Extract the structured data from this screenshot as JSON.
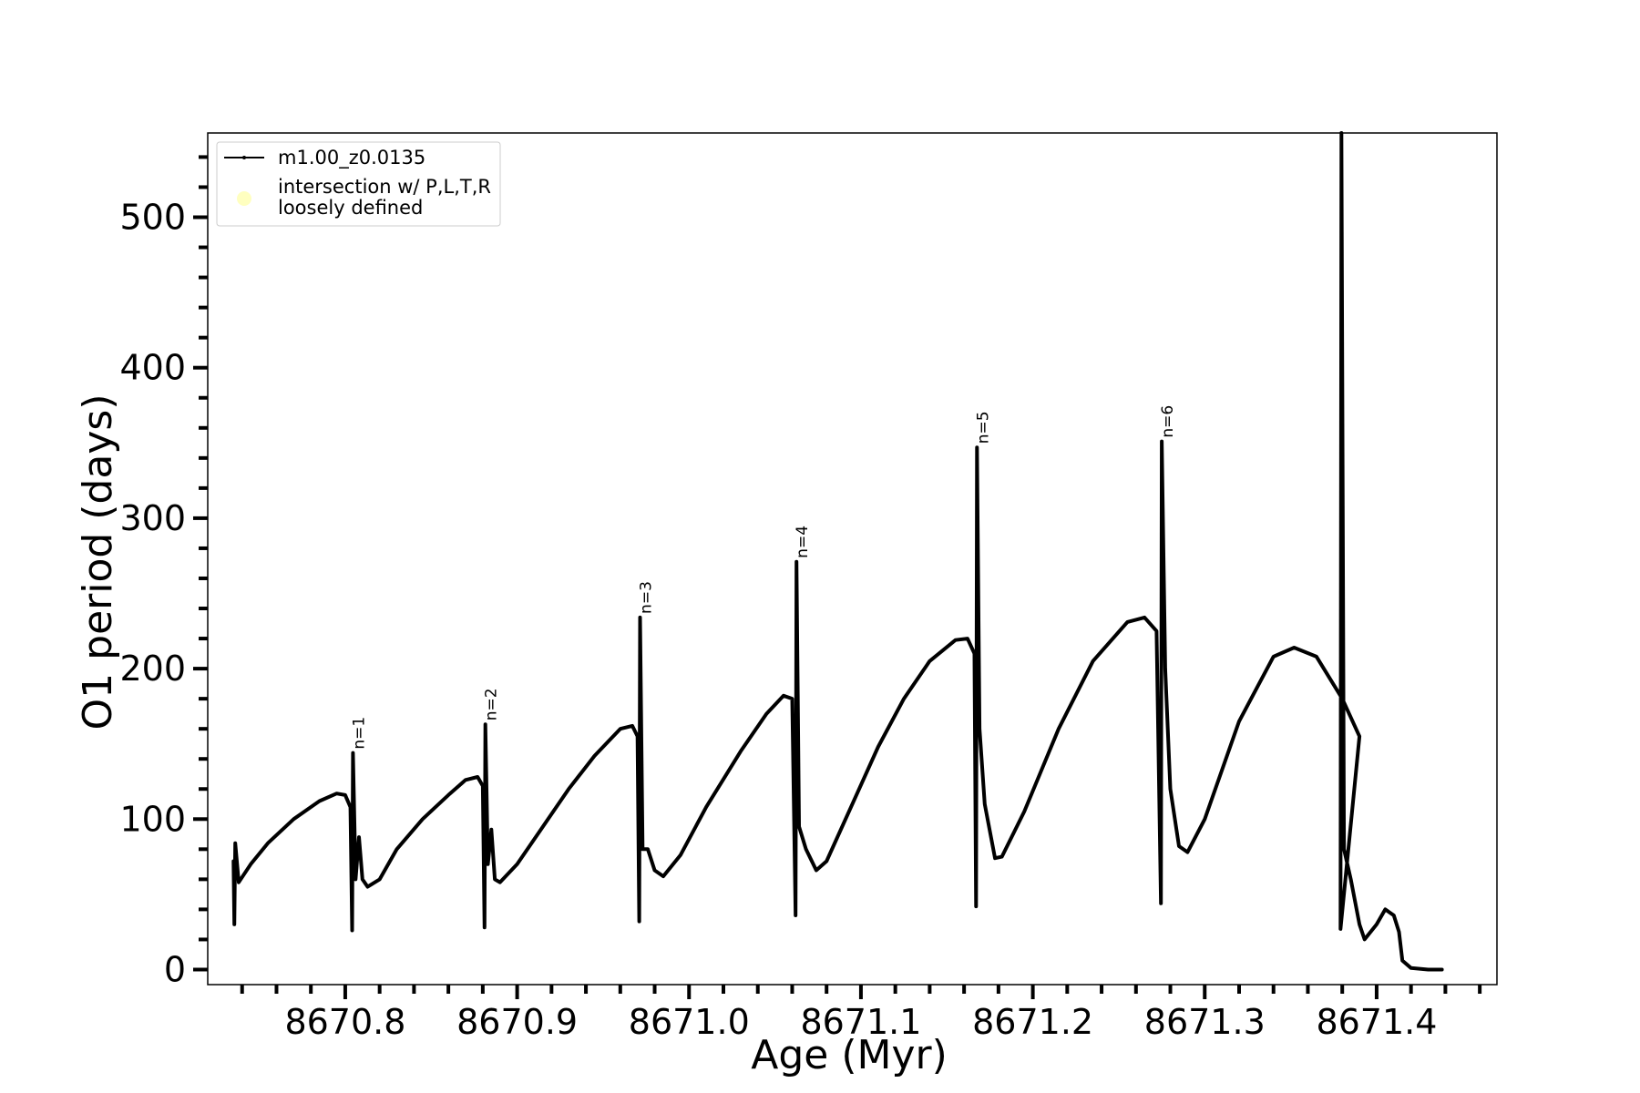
{
  "chart_data": {
    "type": "line",
    "title": "",
    "xlabel": "Age (Myr)",
    "ylabel": "O1 period (days)",
    "xlim": [
      8670.72,
      8671.47
    ],
    "ylim": [
      -10,
      556
    ],
    "x_ticks": [
      8670.8,
      8670.9,
      8671.0,
      8671.1,
      8671.2,
      8671.3,
      8671.4
    ],
    "x_tick_labels": [
      "8670.8",
      "8670.9",
      "8671.0",
      "8671.1",
      "8671.2",
      "8671.3",
      "8671.4"
    ],
    "y_ticks": [
      0,
      100,
      200,
      300,
      400,
      500
    ],
    "y_tick_labels": [
      "0",
      "100",
      "200",
      "300",
      "400",
      "500"
    ],
    "grid": false,
    "legend_position": "top-left",
    "legend": [
      {
        "label": "m1.00_z0.0135",
        "color": "#000000",
        "marker": "line"
      },
      {
        "label": "intersection w/ P,L,T,R\nloosely defined",
        "color": "#ffffc0",
        "marker": "circle"
      }
    ],
    "series": [
      {
        "name": "m1.00_z0.0135",
        "color": "#000000",
        "points": [
          [
            8670.735,
            72
          ],
          [
            8670.7355,
            30
          ],
          [
            8670.736,
            84
          ],
          [
            8670.738,
            58
          ],
          [
            8670.745,
            70
          ],
          [
            8670.755,
            84
          ],
          [
            8670.77,
            100
          ],
          [
            8670.785,
            112
          ],
          [
            8670.795,
            117
          ],
          [
            8670.8,
            116
          ],
          [
            8670.803,
            108
          ],
          [
            8670.804,
            26
          ],
          [
            8670.8045,
            144
          ],
          [
            8670.806,
            60
          ],
          [
            8670.808,
            88
          ],
          [
            8670.81,
            60
          ],
          [
            8670.813,
            55
          ],
          [
            8670.82,
            60
          ],
          [
            8670.83,
            80
          ],
          [
            8670.845,
            100
          ],
          [
            8670.86,
            116
          ],
          [
            8670.87,
            126
          ],
          [
            8670.877,
            128
          ],
          [
            8670.88,
            122
          ],
          [
            8670.881,
            28
          ],
          [
            8670.8815,
            163
          ],
          [
            8670.883,
            70
          ],
          [
            8670.885,
            93
          ],
          [
            8670.887,
            60
          ],
          [
            8670.89,
            58
          ],
          [
            8670.9,
            70
          ],
          [
            8670.915,
            95
          ],
          [
            8670.93,
            120
          ],
          [
            8670.945,
            142
          ],
          [
            8670.96,
            160
          ],
          [
            8670.967,
            162
          ],
          [
            8670.97,
            155
          ],
          [
            8670.971,
            32
          ],
          [
            8670.9715,
            234
          ],
          [
            8670.973,
            80
          ],
          [
            8670.976,
            80
          ],
          [
            8670.98,
            66
          ],
          [
            8670.985,
            62
          ],
          [
            8670.995,
            76
          ],
          [
            8671.01,
            108
          ],
          [
            8671.03,
            145
          ],
          [
            8671.045,
            170
          ],
          [
            8671.055,
            182
          ],
          [
            8671.06,
            180
          ],
          [
            8671.062,
            36
          ],
          [
            8671.0625,
            271
          ],
          [
            8671.064,
            95
          ],
          [
            8671.068,
            80
          ],
          [
            8671.074,
            66
          ],
          [
            8671.08,
            72
          ],
          [
            8671.095,
            110
          ],
          [
            8671.11,
            148
          ],
          [
            8671.125,
            180
          ],
          [
            8671.14,
            205
          ],
          [
            8671.155,
            219
          ],
          [
            8671.162,
            220
          ],
          [
            8671.166,
            210
          ],
          [
            8671.167,
            42
          ],
          [
            8671.1675,
            347
          ],
          [
            8671.169,
            160
          ],
          [
            8671.172,
            110
          ],
          [
            8671.178,
            74
          ],
          [
            8671.182,
            75
          ],
          [
            8671.195,
            105
          ],
          [
            8671.215,
            160
          ],
          [
            8671.235,
            205
          ],
          [
            8671.255,
            231
          ],
          [
            8671.265,
            234
          ],
          [
            8671.272,
            225
          ],
          [
            8671.2745,
            44
          ],
          [
            8671.275,
            351
          ],
          [
            8671.277,
            200
          ],
          [
            8671.28,
            120
          ],
          [
            8671.285,
            82
          ],
          [
            8671.29,
            78
          ],
          [
            8671.3,
            100
          ],
          [
            8671.32,
            165
          ],
          [
            8671.34,
            208
          ],
          [
            8671.352,
            214
          ],
          [
            8671.365,
            208
          ],
          [
            8671.38,
            180
          ],
          [
            8671.39,
            155
          ],
          [
            8671.379,
            27
          ],
          [
            8671.3795,
            556
          ],
          [
            8671.381,
            80
          ],
          [
            8671.385,
            60
          ],
          [
            8671.39,
            30
          ],
          [
            8671.393,
            20
          ],
          [
            8671.4,
            30
          ],
          [
            8671.405,
            40
          ],
          [
            8671.41,
            36
          ],
          [
            8671.413,
            25
          ],
          [
            8671.415,
            6
          ],
          [
            8671.42,
            1
          ],
          [
            8671.43,
            0
          ],
          [
            8671.438,
            0
          ]
        ]
      }
    ],
    "annotations": [
      {
        "text": "n=1",
        "x": 8670.8045,
        "y": 144
      },
      {
        "text": "n=2",
        "x": 8670.8815,
        "y": 163
      },
      {
        "text": "n=3",
        "x": 8670.9715,
        "y": 234
      },
      {
        "text": "n=4",
        "x": 8671.0625,
        "y": 271
      },
      {
        "text": "n=5",
        "x": 8671.1675,
        "y": 347
      },
      {
        "text": "n=6",
        "x": 8671.275,
        "y": 351
      }
    ]
  }
}
